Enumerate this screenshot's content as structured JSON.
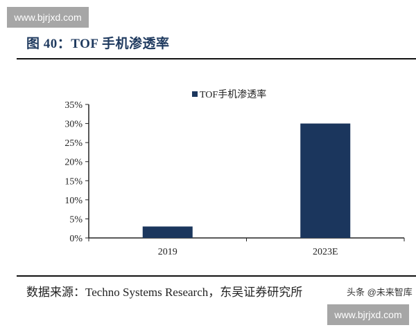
{
  "watermark": {
    "site": "www.bjrjxd.com",
    "credit": "头条 @未来智库"
  },
  "figure_title": "图 40：TOF 手机渗透率",
  "source": "数据来源：Techno Systems Research，东吴证券研究所",
  "chart_data": {
    "type": "bar",
    "categories": [
      "2019",
      "2023E"
    ],
    "series": [
      {
        "name": "TOF手机渗透率",
        "values": [
          3,
          30
        ],
        "color": "#1b365d"
      }
    ],
    "ylim": [
      0,
      35
    ],
    "yticks": [
      "0%",
      "5%",
      "10%",
      "15%",
      "20%",
      "25%",
      "30%",
      "35%"
    ],
    "ytick_values": [
      0,
      5,
      10,
      15,
      20,
      25,
      30,
      35
    ],
    "grid": false,
    "legend": "top-center",
    "xlabel": "",
    "ylabel": ""
  }
}
